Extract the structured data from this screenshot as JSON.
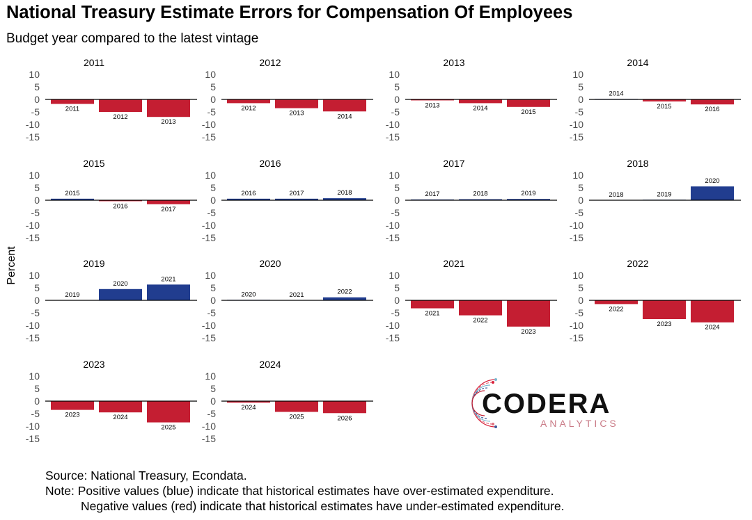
{
  "header": {
    "title": "National Treasury Estimate Errors for Compensation Of Employees",
    "subtitle": "Budget year compared to the latest vintage"
  },
  "footer": {
    "source": "Source: National Treasury, Econdata.",
    "note_line1": "Note: Positive values (blue) indicate that historical estimates have over-estimated expenditure.",
    "note_line2": "Negative values (red) indicate that historical estimates have under-estimated expenditure."
  },
  "logo": {
    "name": "CODERA",
    "tagline": "ANALYTICS"
  },
  "colors": {
    "positive": "#213D8F",
    "negative": "#C41E32",
    "axis": "#000000"
  },
  "chart_data": {
    "type": "bar",
    "ylabel": "Percent",
    "ylim": [
      -15,
      10
    ],
    "yticks": [
      10,
      5,
      0,
      -5,
      -10,
      -15
    ],
    "grid": false,
    "panels": [
      {
        "title": "2011",
        "categories": [
          "2011",
          "2012",
          "2013"
        ],
        "values": [
          -1.8,
          -5.0,
          -7.0
        ]
      },
      {
        "title": "2012",
        "categories": [
          "2012",
          "2013",
          "2014"
        ],
        "values": [
          -1.5,
          -3.5,
          -4.8
        ]
      },
      {
        "title": "2013",
        "categories": [
          "2013",
          "2014",
          "2015"
        ],
        "values": [
          -0.4,
          -1.5,
          -3.0
        ]
      },
      {
        "title": "2014",
        "categories": [
          "2014",
          "2015",
          "2016"
        ],
        "values": [
          0.2,
          -0.8,
          -2.0
        ]
      },
      {
        "title": "2015",
        "categories": [
          "2015",
          "2016",
          "2017"
        ],
        "values": [
          0.6,
          -0.4,
          -1.6
        ]
      },
      {
        "title": "2016",
        "categories": [
          "2016",
          "2017",
          "2018"
        ],
        "values": [
          0.6,
          0.6,
          0.8
        ]
      },
      {
        "title": "2017",
        "categories": [
          "2017",
          "2018",
          "2019"
        ],
        "values": [
          0.3,
          0.4,
          0.5
        ]
      },
      {
        "title": "2018",
        "categories": [
          "2018",
          "2019",
          "2020"
        ],
        "values": [
          0.0,
          0.2,
          5.5
        ]
      },
      {
        "title": "2019",
        "categories": [
          "2019",
          "2020",
          "2021"
        ],
        "values": [
          0.0,
          4.5,
          6.3
        ]
      },
      {
        "title": "2020",
        "categories": [
          "2020",
          "2021",
          "2022"
        ],
        "values": [
          0.2,
          0.0,
          1.2
        ]
      },
      {
        "title": "2021",
        "categories": [
          "2021",
          "2022",
          "2023"
        ],
        "values": [
          -3.2,
          -6.0,
          -10.5
        ]
      },
      {
        "title": "2022",
        "categories": [
          "2022",
          "2023",
          "2024"
        ],
        "values": [
          -1.5,
          -7.5,
          -8.8
        ]
      },
      {
        "title": "2023",
        "categories": [
          "2023",
          "2024",
          "2025"
        ],
        "values": [
          -3.5,
          -4.5,
          -8.5
        ]
      },
      {
        "title": "2024",
        "categories": [
          "2024",
          "2025",
          "2026"
        ],
        "values": [
          -0.6,
          -4.3,
          -4.8
        ]
      }
    ]
  }
}
